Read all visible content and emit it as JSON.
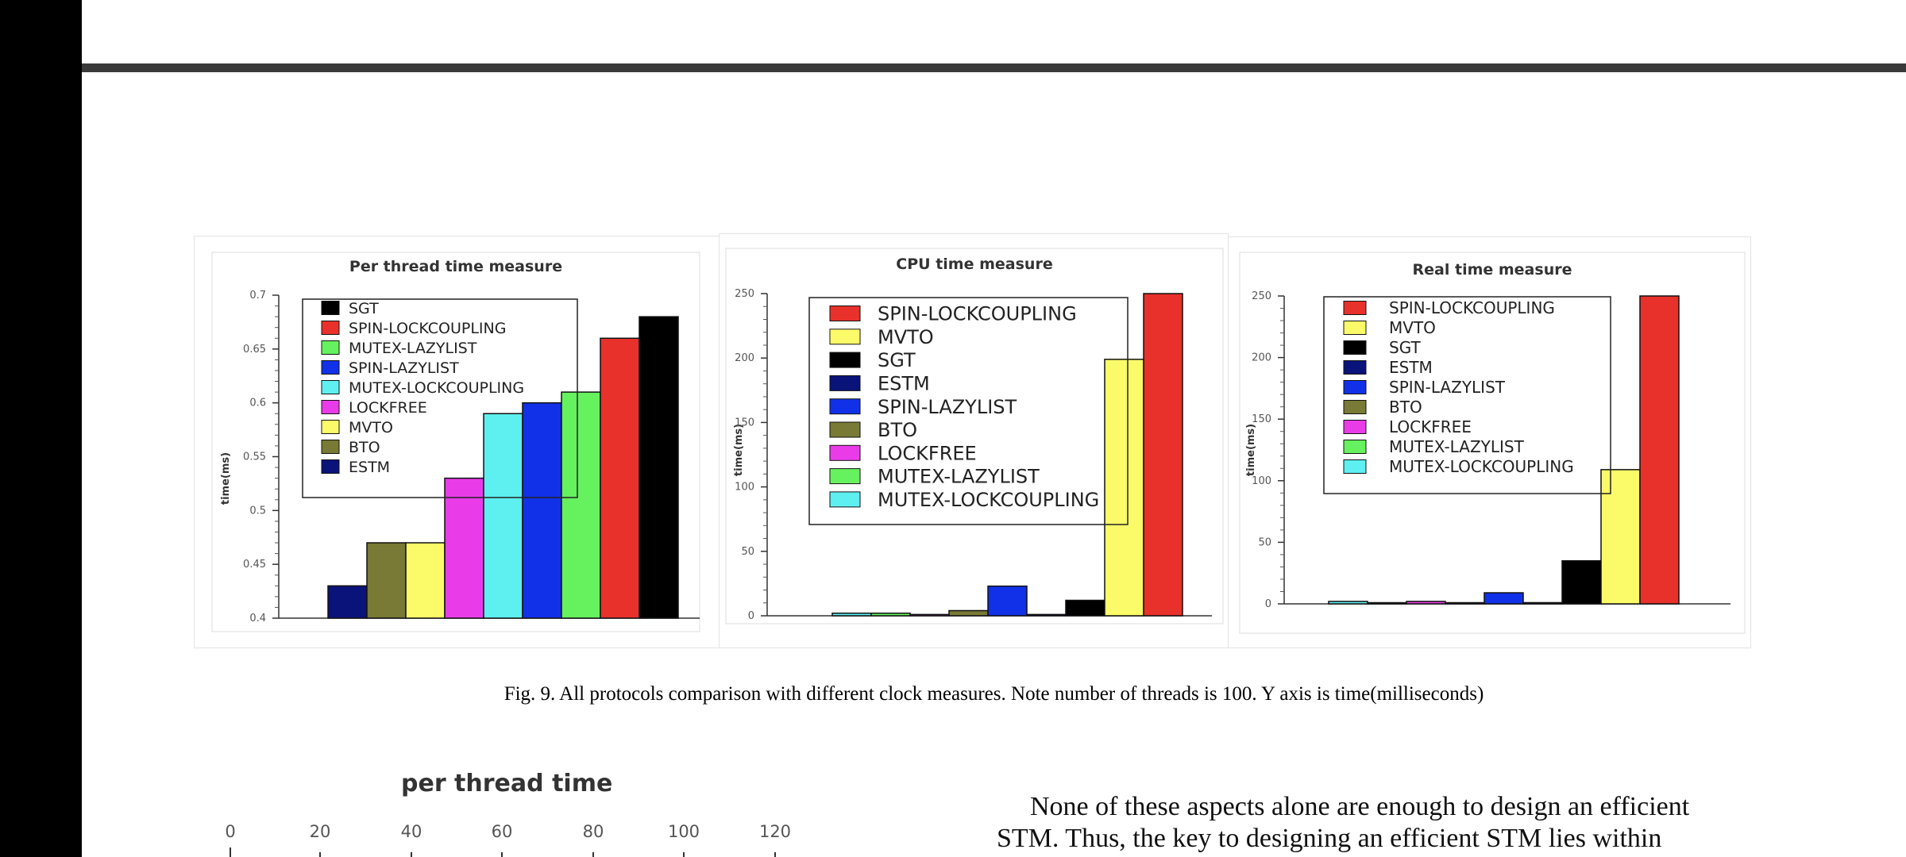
{
  "figure": {
    "caption": "Fig. 9. All protocols comparison with different clock measures. Note number of threads is 100. Y axis is time(milliseconds)"
  },
  "colors": {
    "SGT": "#000000",
    "SPIN-LOCKCOUPLING": "#e8312b",
    "MUTEX-LAZYLIST": "#66f25e",
    "SPIN-LAZYLIST": "#1131e8",
    "MUTEX-LOCKCOUPLING": "#5ef0f0",
    "LOCKFREE": "#e93ce8",
    "MVTO": "#fbfb6a",
    "BTO": "#787a35",
    "ESTM": "#0a137a"
  },
  "chart_data": [
    {
      "type": "bar",
      "title": "Per thread time measure",
      "ylabel": "time(ms)",
      "ylim": [
        0.4,
        0.7
      ],
      "yticks": [
        "0.4",
        "0.45",
        "0.5",
        "0.55",
        "0.6",
        "0.65",
        "0.7"
      ],
      "legend": [
        "SGT",
        "SPIN-LOCKCOUPLING",
        "MUTEX-LAZYLIST",
        "SPIN-LAZYLIST",
        "MUTEX-LOCKCOUPLING",
        "LOCKFREE",
        "MVTO",
        "BTO",
        "ESTM"
      ],
      "bars": [
        {
          "name": "ESTM",
          "value": 0.43
        },
        {
          "name": "BTO",
          "value": 0.47
        },
        {
          "name": "MVTO",
          "value": 0.47
        },
        {
          "name": "LOCKFREE",
          "value": 0.53
        },
        {
          "name": "MUTEX-LOCKCOUPLING",
          "value": 0.59
        },
        {
          "name": "SPIN-LAZYLIST",
          "value": 0.6
        },
        {
          "name": "MUTEX-LAZYLIST",
          "value": 0.61
        },
        {
          "name": "SPIN-LOCKCOUPLING",
          "value": 0.66
        },
        {
          "name": "SGT",
          "value": 0.68
        }
      ]
    },
    {
      "type": "bar",
      "title": "CPU time measure",
      "ylabel": "time(ms)",
      "ylim": [
        0,
        250
      ],
      "yticks": [
        "0",
        "50",
        "100",
        "150",
        "200",
        "250"
      ],
      "legend": [
        "SPIN-LOCKCOUPLING",
        "MVTO",
        "SGT",
        "ESTM",
        "SPIN-LAZYLIST",
        "BTO",
        "LOCKFREE",
        "MUTEX-LAZYLIST",
        "MUTEX-LOCKCOUPLING"
      ],
      "bars": [
        {
          "name": "MUTEX-LOCKCOUPLING",
          "value": 2
        },
        {
          "name": "MUTEX-LAZYLIST",
          "value": 2
        },
        {
          "name": "LOCKFREE",
          "value": 1
        },
        {
          "name": "BTO",
          "value": 4
        },
        {
          "name": "SPIN-LAZYLIST",
          "value": 23
        },
        {
          "name": "ESTM",
          "value": 1
        },
        {
          "name": "SGT",
          "value": 12
        },
        {
          "name": "MVTO",
          "value": 199
        },
        {
          "name": "SPIN-LOCKCOUPLING",
          "value": 250
        }
      ]
    },
    {
      "type": "bar",
      "title": "Real time measure",
      "ylabel": "time(ms)",
      "ylim": [
        0,
        250
      ],
      "yticks": [
        "0",
        "50",
        "100",
        "150",
        "200",
        "250"
      ],
      "legend": [
        "SPIN-LOCKCOUPLING",
        "MVTO",
        "SGT",
        "ESTM",
        "SPIN-LAZYLIST",
        "BTO",
        "LOCKFREE",
        "MUTEX-LAZYLIST",
        "MUTEX-LOCKCOUPLING"
      ],
      "bars": [
        {
          "name": "MUTEX-LOCKCOUPLING",
          "value": 2
        },
        {
          "name": "MUTEX-LAZYLIST",
          "value": 0
        },
        {
          "name": "LOCKFREE",
          "value": 2
        },
        {
          "name": "BTO",
          "value": 0
        },
        {
          "name": "SPIN-LAZYLIST",
          "value": 9
        },
        {
          "name": "ESTM",
          "value": 1
        },
        {
          "name": "SGT",
          "value": 35
        },
        {
          "name": "MVTO",
          "value": 109
        },
        {
          "name": "SPIN-LOCKCOUPLING",
          "value": 250
        }
      ]
    },
    {
      "type": "bar",
      "title": "per thread time",
      "xticks": [
        "0",
        "20",
        "40",
        "60",
        "80",
        "100",
        "120"
      ]
    }
  ],
  "body_text": [
    "None of these aspects alone are enough to design an efficient",
    "STM. Thus, the key to designing an efficient STM lies within"
  ]
}
